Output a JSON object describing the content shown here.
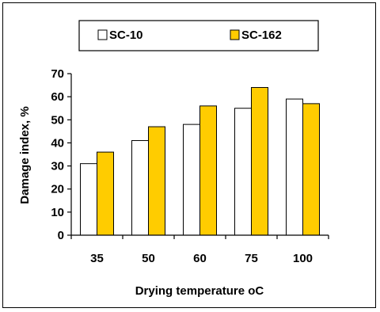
{
  "chart_data": {
    "type": "bar",
    "title": "",
    "xlabel": "Drying temperature oC",
    "ylabel": "Damage index, %",
    "categories": [
      "35",
      "50",
      "60",
      "75",
      "100"
    ],
    "series": [
      {
        "name": "SC-10",
        "values": [
          31,
          41,
          48,
          55,
          59
        ],
        "color": "#ffffff"
      },
      {
        "name": "SC-162",
        "values": [
          36,
          47,
          56,
          64,
          57
        ],
        "color": "#ffcc00"
      }
    ],
    "ylim": [
      0,
      70
    ],
    "yticks": [
      "0",
      "10",
      "20",
      "30",
      "40",
      "50",
      "60",
      "70"
    ],
    "grid": false,
    "legend": "top"
  }
}
